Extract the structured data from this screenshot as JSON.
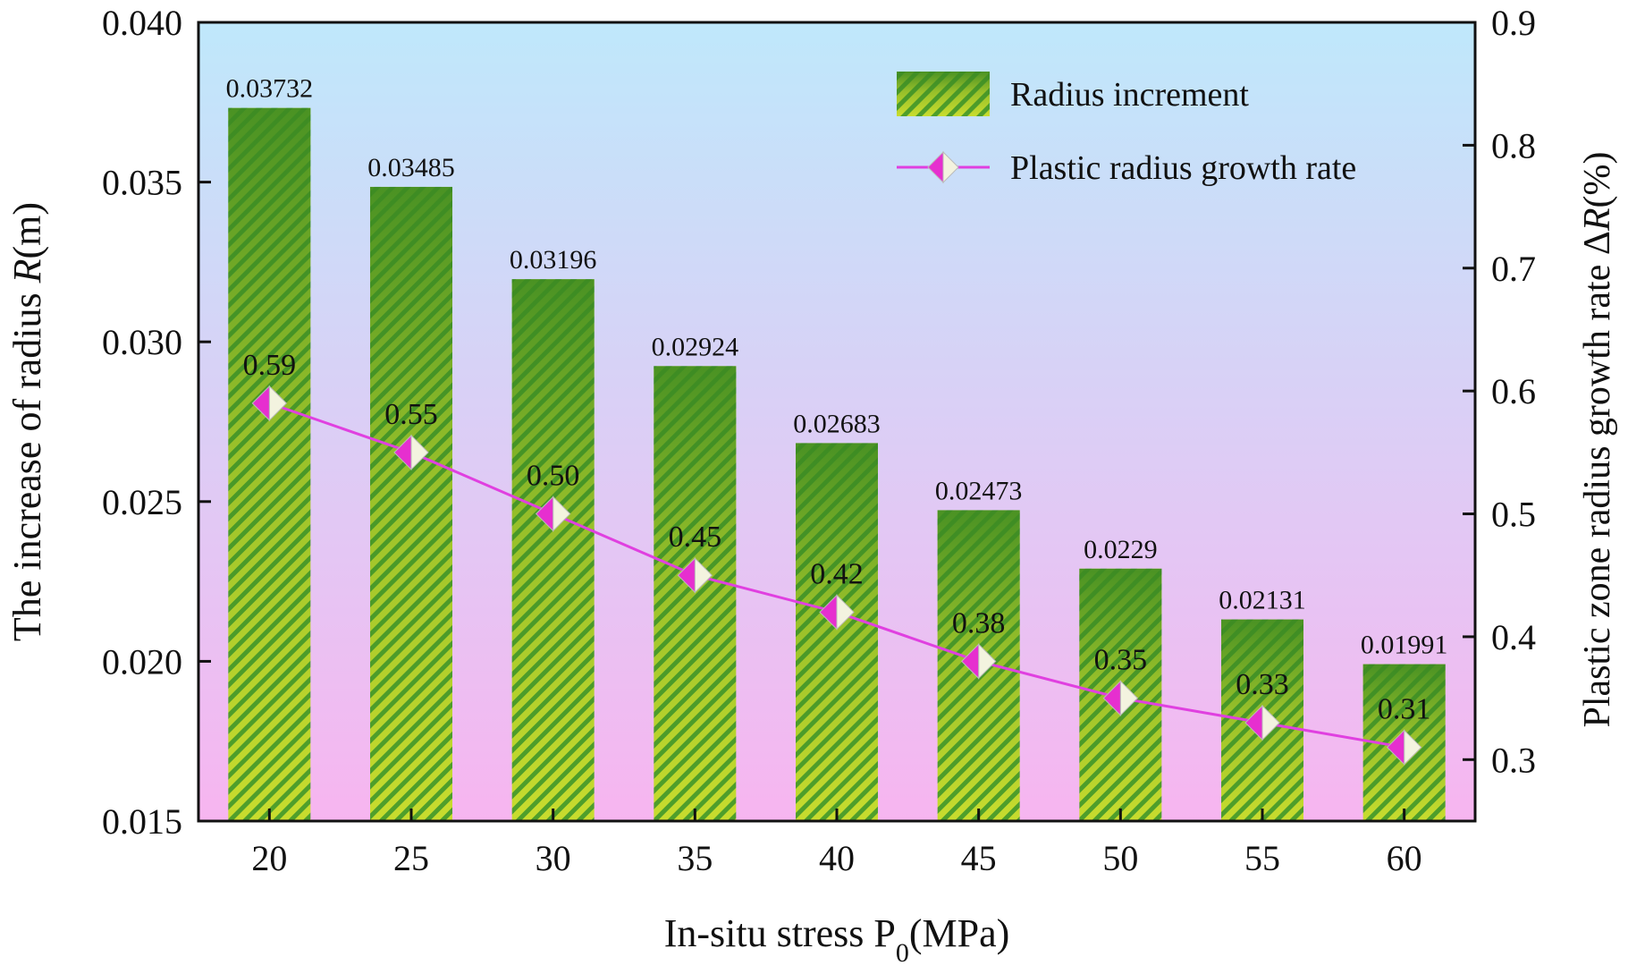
{
  "chart_data": {
    "type": "bar",
    "categories": [
      "20",
      "25",
      "30",
      "35",
      "40",
      "45",
      "50",
      "55",
      "60"
    ],
    "xlabel": {
      "main": "In-situ stress P",
      "sub": "0",
      "unit": "(MPa)"
    },
    "ylabel_left": {
      "prefix": "The increase of  radius ",
      "italic": "R",
      "suffix": "(m)"
    },
    "ylabel_right": {
      "prefix": "Plastic zone radius growth rate Δ",
      "italic": "R",
      "suffix": "(%)"
    },
    "ylim_left": [
      0.015,
      0.04
    ],
    "yticks_left": [
      "0.015",
      "0.020",
      "0.025",
      "0.030",
      "0.035",
      "0.040"
    ],
    "ylim_right": [
      0.25,
      0.9
    ],
    "yticks_right": [
      "0.3",
      "0.4",
      "0.5",
      "0.6",
      "0.7",
      "0.8",
      "0.9"
    ],
    "series": [
      {
        "name": "Radius increment",
        "type": "bar",
        "axis": "left",
        "values": [
          0.03732,
          0.03485,
          0.03196,
          0.02924,
          0.02683,
          0.02473,
          0.0229,
          0.02131,
          0.01991
        ],
        "labels": [
          "0.03732",
          "0.03485",
          "0.03196",
          "0.02924",
          "0.02683",
          "0.02473",
          "0.0229",
          "0.02131",
          "0.01991"
        ],
        "color": "#4e9a2a"
      },
      {
        "name": "Plastic radius growth rate",
        "type": "line",
        "axis": "right",
        "values": [
          0.59,
          0.55,
          0.5,
          0.45,
          0.42,
          0.38,
          0.35,
          0.33,
          0.31
        ],
        "labels": [
          "0.59",
          "0.55",
          "0.50",
          "0.45",
          "0.42",
          "0.38",
          "0.35",
          "0.33",
          "0.31"
        ],
        "color": "#e040e0"
      }
    ],
    "legend_position": "top-right",
    "background_gradient": [
      "#bfe8fb",
      "#f7b5f0"
    ]
  }
}
